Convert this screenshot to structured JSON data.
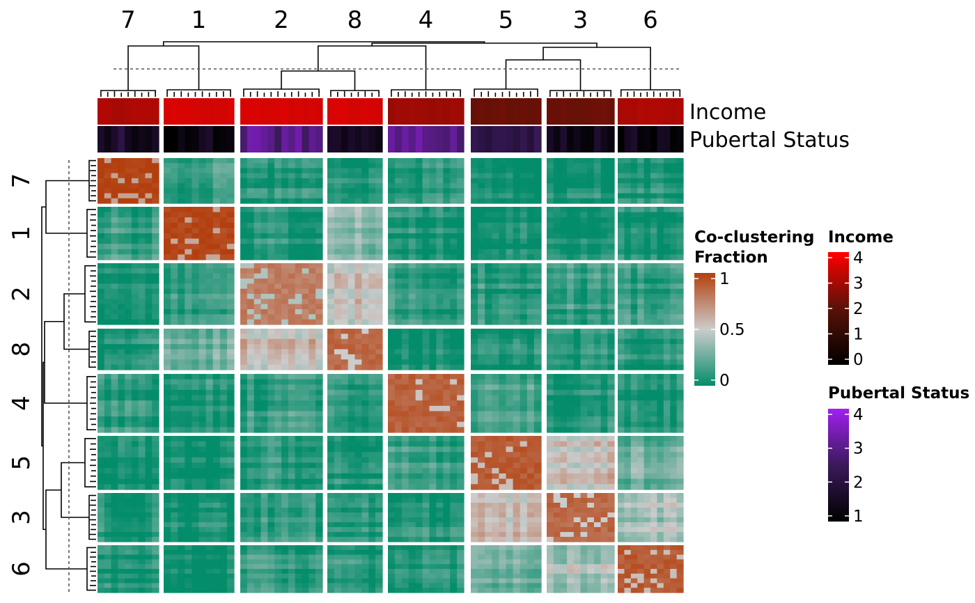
{
  "chart_data": {
    "type": "heatmap",
    "title": "",
    "clusters": [
      "7",
      "1",
      "2",
      "8",
      "4",
      "5",
      "3",
      "6"
    ],
    "column_order": [
      "7",
      "1",
      "2",
      "8",
      "4",
      "5",
      "3",
      "6"
    ],
    "row_order": [
      "7",
      "1",
      "2",
      "8",
      "4",
      "5",
      "3",
      "6"
    ],
    "cluster_sizes": [
      9,
      10,
      12,
      8,
      11,
      10,
      10,
      10
    ],
    "block_mean_coclustering_fraction": [
      [
        1.0,
        0.12,
        0.05,
        0.05,
        0.1,
        0.03,
        0.04,
        0.06
      ],
      [
        0.12,
        0.98,
        0.08,
        0.3,
        0.06,
        0.03,
        0.03,
        0.05
      ],
      [
        0.05,
        0.08,
        0.78,
        0.55,
        0.12,
        0.1,
        0.1,
        0.12
      ],
      [
        0.05,
        0.3,
        0.55,
        0.85,
        0.08,
        0.05,
        0.05,
        0.06
      ],
      [
        0.1,
        0.06,
        0.12,
        0.08,
        0.88,
        0.15,
        0.08,
        0.06
      ],
      [
        0.03,
        0.03,
        0.1,
        0.05,
        0.15,
        0.9,
        0.55,
        0.25
      ],
      [
        0.04,
        0.03,
        0.1,
        0.05,
        0.08,
        0.55,
        0.85,
        0.4
      ],
      [
        0.06,
        0.05,
        0.12,
        0.06,
        0.06,
        0.25,
        0.4,
        0.9
      ]
    ],
    "annotations": [
      {
        "name": "Income",
        "cluster_mean_values": [
          3.0,
          3.5,
          3.5,
          3.5,
          2.8,
          2.2,
          2.2,
          3.0
        ]
      },
      {
        "name": "Pubertal Status",
        "cluster_mean_values": [
          1.7,
          1.3,
          2.9,
          1.8,
          2.9,
          2.0,
          1.4,
          1.3
        ]
      }
    ],
    "legends": [
      {
        "title": "Co-clustering\nFraction",
        "ticks": [
          "1",
          "0.5",
          "0"
        ],
        "range": [
          0,
          1
        ],
        "colors": [
          "#048d6a",
          "#cccccc",
          "#b33f0e"
        ]
      },
      {
        "title": "Income",
        "ticks": [
          "4",
          "3",
          "2",
          "1",
          "0"
        ],
        "range": [
          0,
          4
        ],
        "colors": [
          "#000000",
          "#5a1208",
          "#ff0000"
        ]
      },
      {
        "title": "Pubertal Status",
        "ticks": [
          "4",
          "3",
          "2",
          "1"
        ],
        "range": [
          1,
          4
        ],
        "colors": [
          "#000000",
          "#3a1a5a",
          "#a020f0"
        ]
      }
    ],
    "dendrogram_cut_line": "dashed",
    "legend_placement": "right"
  }
}
